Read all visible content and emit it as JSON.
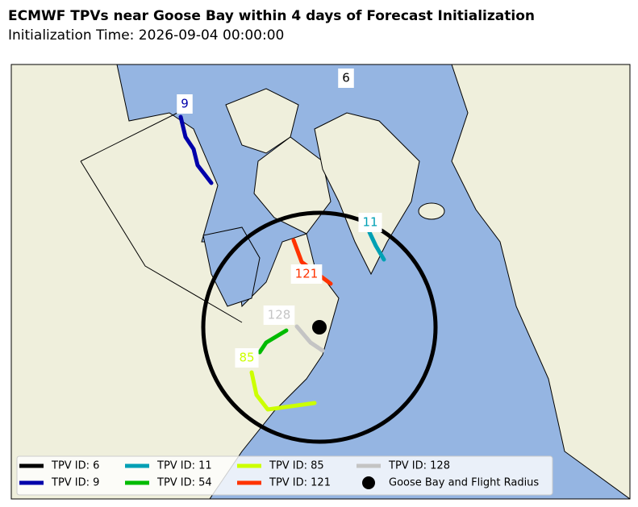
{
  "title": "ECMWF TPVs near Goose Bay within 4 days of Forecast Initialization",
  "subtitle": "Initialization Time: 2026-09-04 00:00:00",
  "map_labels": [
    {
      "text": "6",
      "color": "#000000"
    },
    {
      "text": "9",
      "color": "#0000aa"
    },
    {
      "text": "11",
      "color": "#00a0b4"
    },
    {
      "text": "121",
      "color": "#ff3300"
    },
    {
      "text": "128",
      "color": "#c4c4c4"
    },
    {
      "text": "85",
      "color": "#ccff00"
    }
  ],
  "legend": [
    {
      "name": "TPV ID: 6",
      "color": "#000000"
    },
    {
      "name": "TPV ID: 9",
      "color": "#0000aa"
    },
    {
      "name": "TPV ID: 11",
      "color": "#00a0b4"
    },
    {
      "name": "TPV ID: 54",
      "color": "#00bb00"
    },
    {
      "name": "TPV ID: 85",
      "color": "#ccff00"
    },
    {
      "name": "TPV ID: 121",
      "color": "#ff3300"
    },
    {
      "name": "TPV ID: 128",
      "color": "#c4c4c4"
    },
    {
      "name": "Goose Bay and Flight Radius",
      "color": "#000000",
      "marker": "circle"
    }
  ]
}
